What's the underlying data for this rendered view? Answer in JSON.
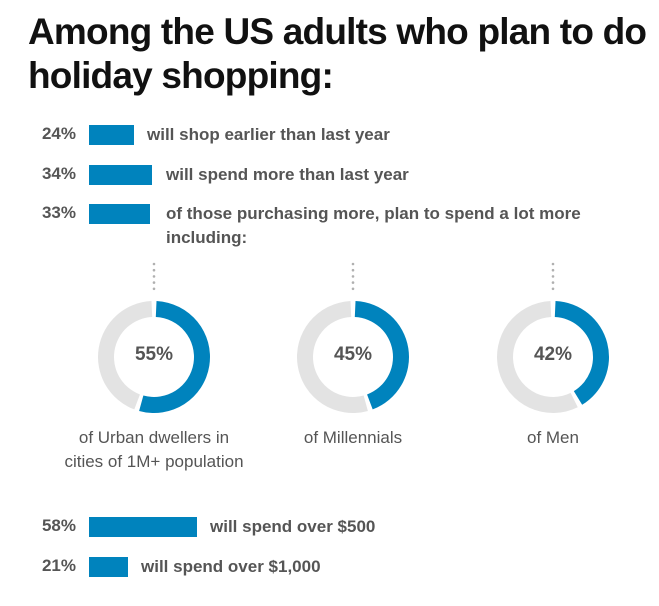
{
  "title": "Among the US adults who plan to do holiday shopping:",
  "colors": {
    "accent": "#0083bd",
    "track": "#e3e3e3",
    "text": "#555555",
    "title": "#111111",
    "dots": "#b0b0b0"
  },
  "chart_data": [
    {
      "type": "bar",
      "title": "Among the US adults who plan to do holiday shopping:",
      "unit": "%",
      "xlim": [
        0,
        100
      ],
      "items": [
        {
          "pct_label": "24%",
          "value": 24,
          "label": "will shop earlier than last year"
        },
        {
          "pct_label": "34%",
          "value": 34,
          "label": "will spend more than last year"
        },
        {
          "pct_label": "33%",
          "value": 33,
          "label": "of those purchasing more, plan to spend a lot more including:"
        }
      ]
    },
    {
      "type": "pie",
      "subtype": "donut",
      "items": [
        {
          "pct_label": "55%",
          "value": 55,
          "caption": "of Urban dwellers in cities of 1M+ population"
        },
        {
          "pct_label": "45%",
          "value": 45,
          "caption": "of Millennials"
        },
        {
          "pct_label": "42%",
          "value": 42,
          "caption": "of Men"
        }
      ]
    },
    {
      "type": "bar",
      "unit": "%",
      "xlim": [
        0,
        100
      ],
      "items": [
        {
          "pct_label": "58%",
          "value": 58,
          "label": "will spend over $500"
        },
        {
          "pct_label": "21%",
          "value": 21,
          "label": "will spend over $1,000"
        }
      ]
    }
  ]
}
